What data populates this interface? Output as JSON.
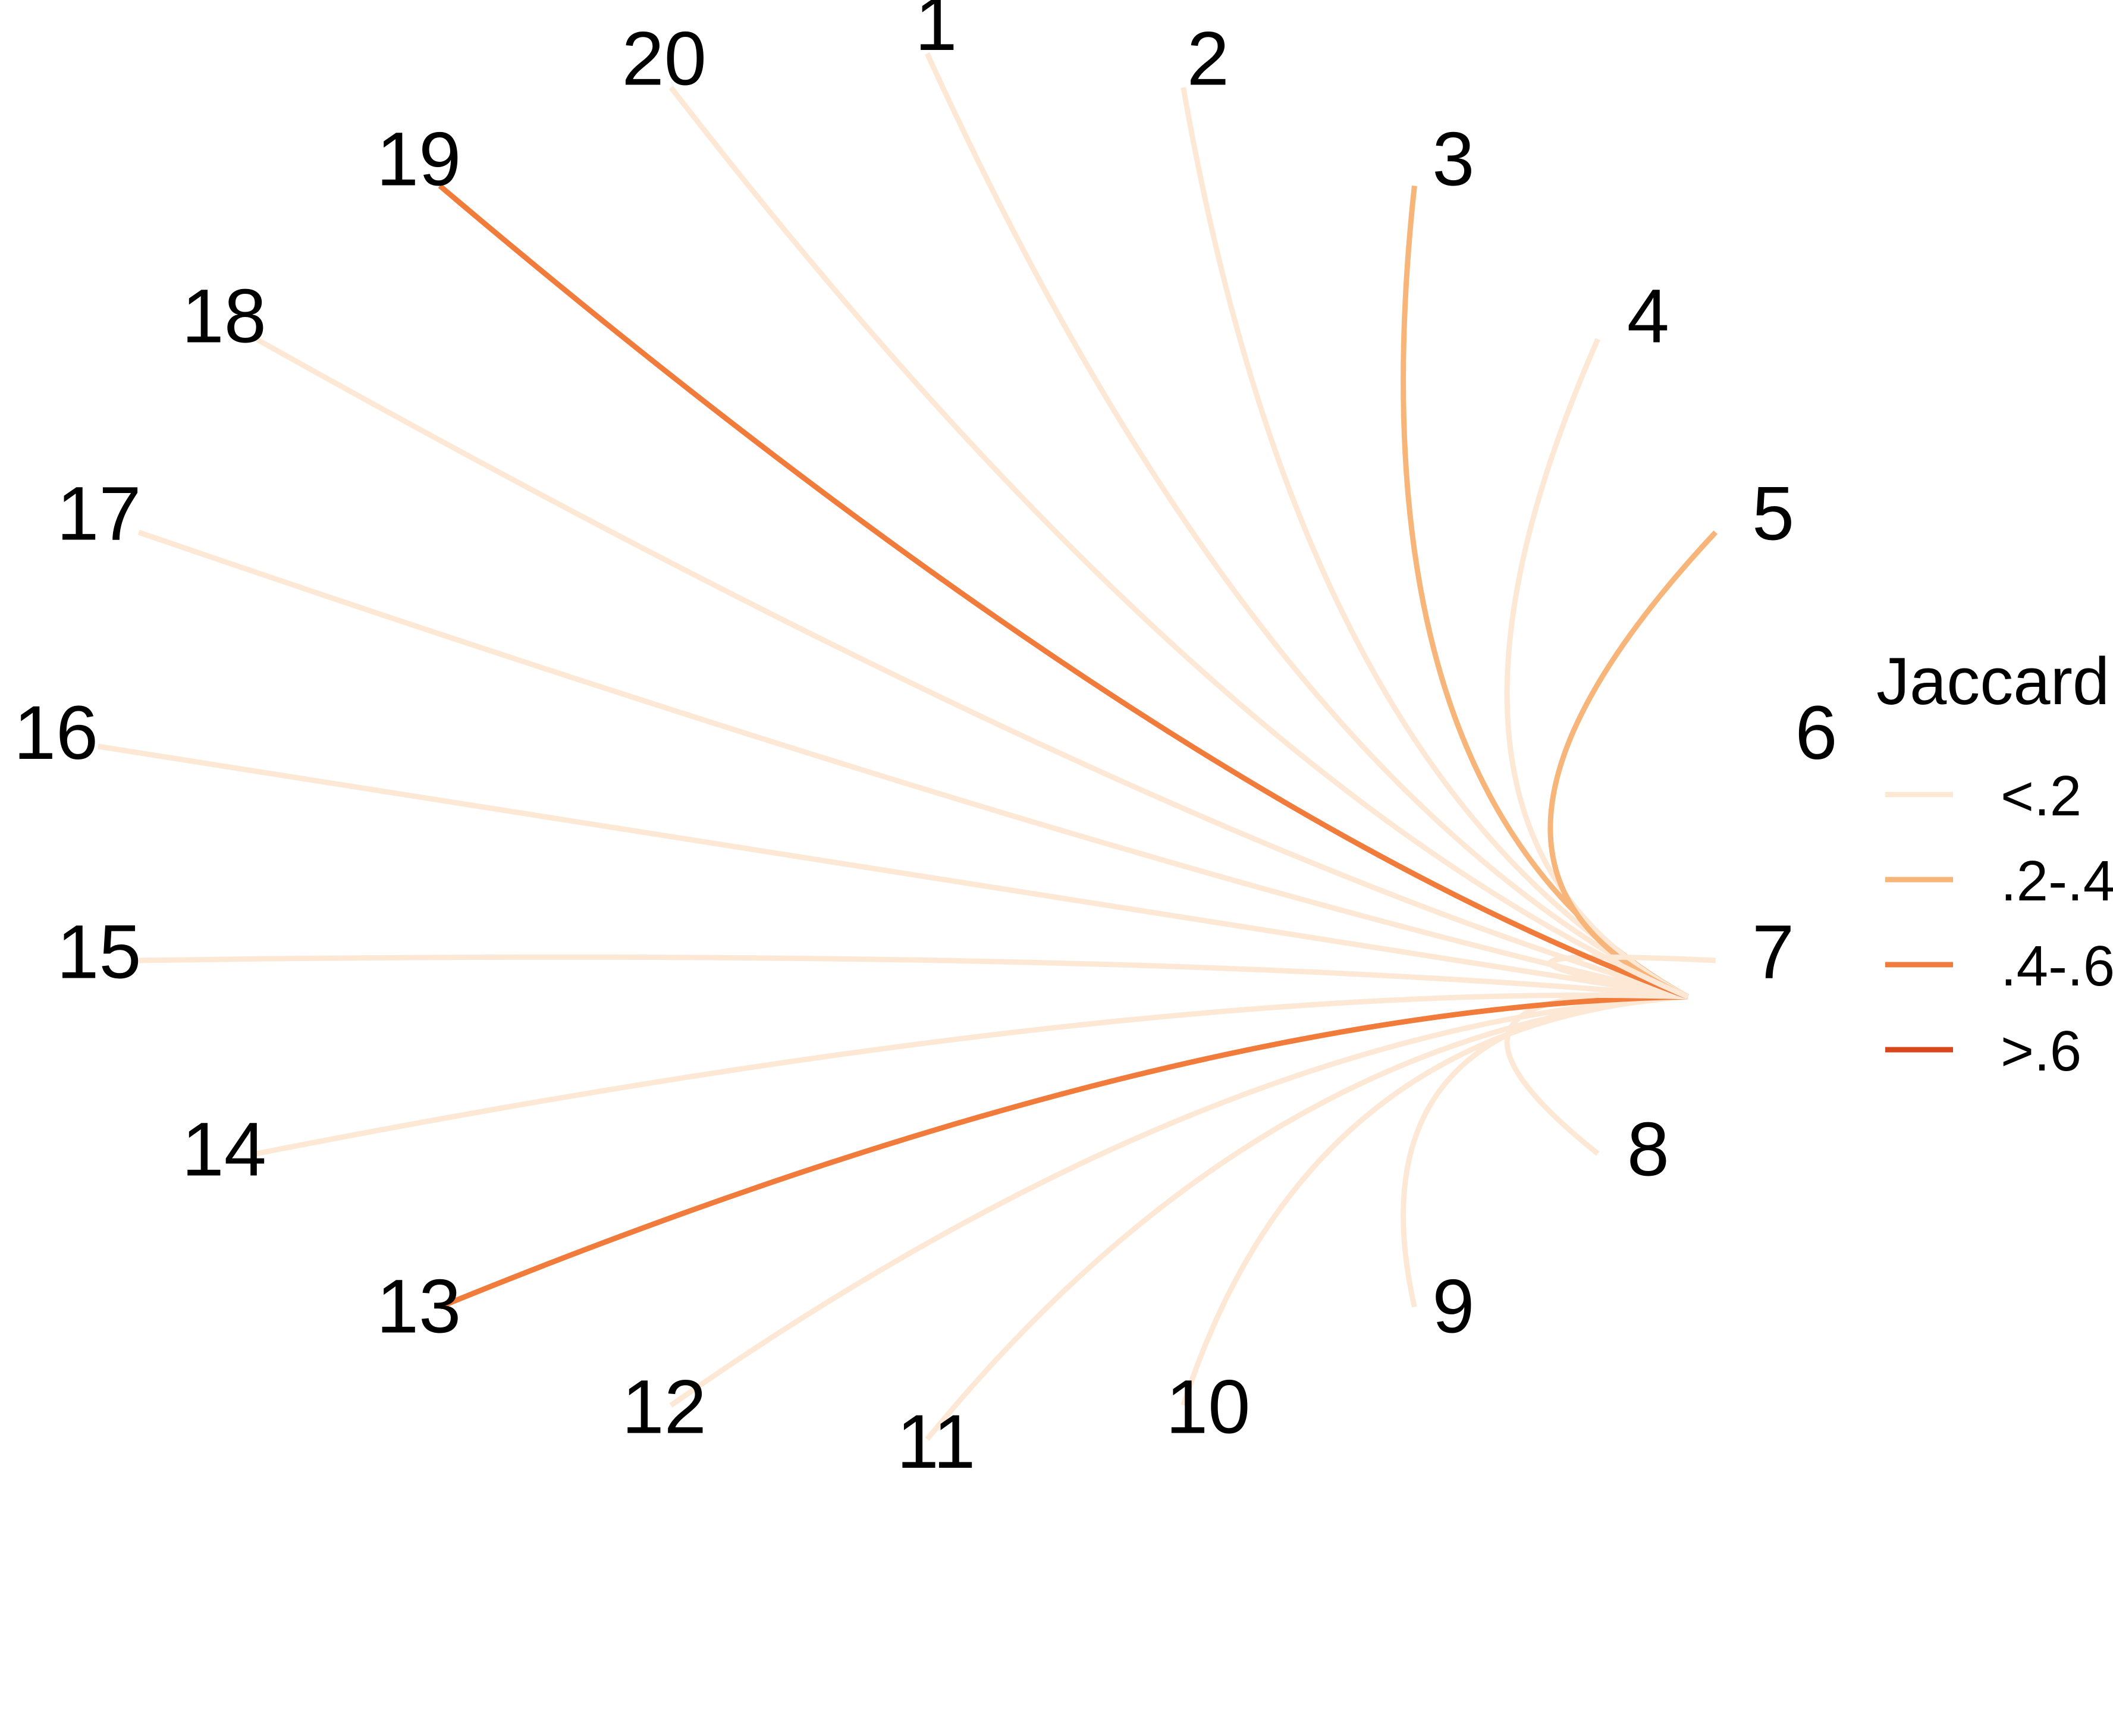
{
  "legend": {
    "title": "Jaccard",
    "items": [
      {
        "label": "<.2",
        "color": "#FDE8D6"
      },
      {
        "label": ".2-.4",
        "color": "#F8B57A"
      },
      {
        "label": ".4-.6",
        "color": "#F07B3A"
      },
      {
        "label": ">.6",
        "color": "#D8461B"
      }
    ]
  },
  "nodes": [
    "1",
    "2",
    "3",
    "4",
    "5",
    "6",
    "7",
    "8",
    "9",
    "10",
    "11",
    "12",
    "13",
    "14",
    "15",
    "16",
    "17",
    "18",
    "19",
    "20"
  ],
  "hub": "6",
  "edges": [
    {
      "from": "1",
      "to": "6",
      "bin": "<.2"
    },
    {
      "from": "2",
      "to": "6",
      "bin": "<.2"
    },
    {
      "from": "3",
      "to": "6",
      "bin": ".2-.4"
    },
    {
      "from": "4",
      "to": "6",
      "bin": "<.2"
    },
    {
      "from": "5",
      "to": "6",
      "bin": ".2-.4"
    },
    {
      "from": "7",
      "to": "6",
      "bin": "<.2"
    },
    {
      "from": "8",
      "to": "6",
      "bin": "<.2"
    },
    {
      "from": "9",
      "to": "6",
      "bin": "<.2"
    },
    {
      "from": "10",
      "to": "6",
      "bin": "<.2"
    },
    {
      "from": "11",
      "to": "6",
      "bin": "<.2"
    },
    {
      "from": "12",
      "to": "6",
      "bin": "<.2"
    },
    {
      "from": "13",
      "to": "6",
      "bin": ".4-.6"
    },
    {
      "from": "14",
      "to": "6",
      "bin": "<.2"
    },
    {
      "from": "15",
      "to": "6",
      "bin": "<.2"
    },
    {
      "from": "16",
      "to": "6",
      "bin": "<.2"
    },
    {
      "from": "17",
      "to": "6",
      "bin": "<.2"
    },
    {
      "from": "18",
      "to": "6",
      "bin": "<.2"
    },
    {
      "from": "19",
      "to": "6",
      "bin": ".4-.6"
    },
    {
      "from": "20",
      "to": "6",
      "bin": "<.2"
    }
  ]
}
